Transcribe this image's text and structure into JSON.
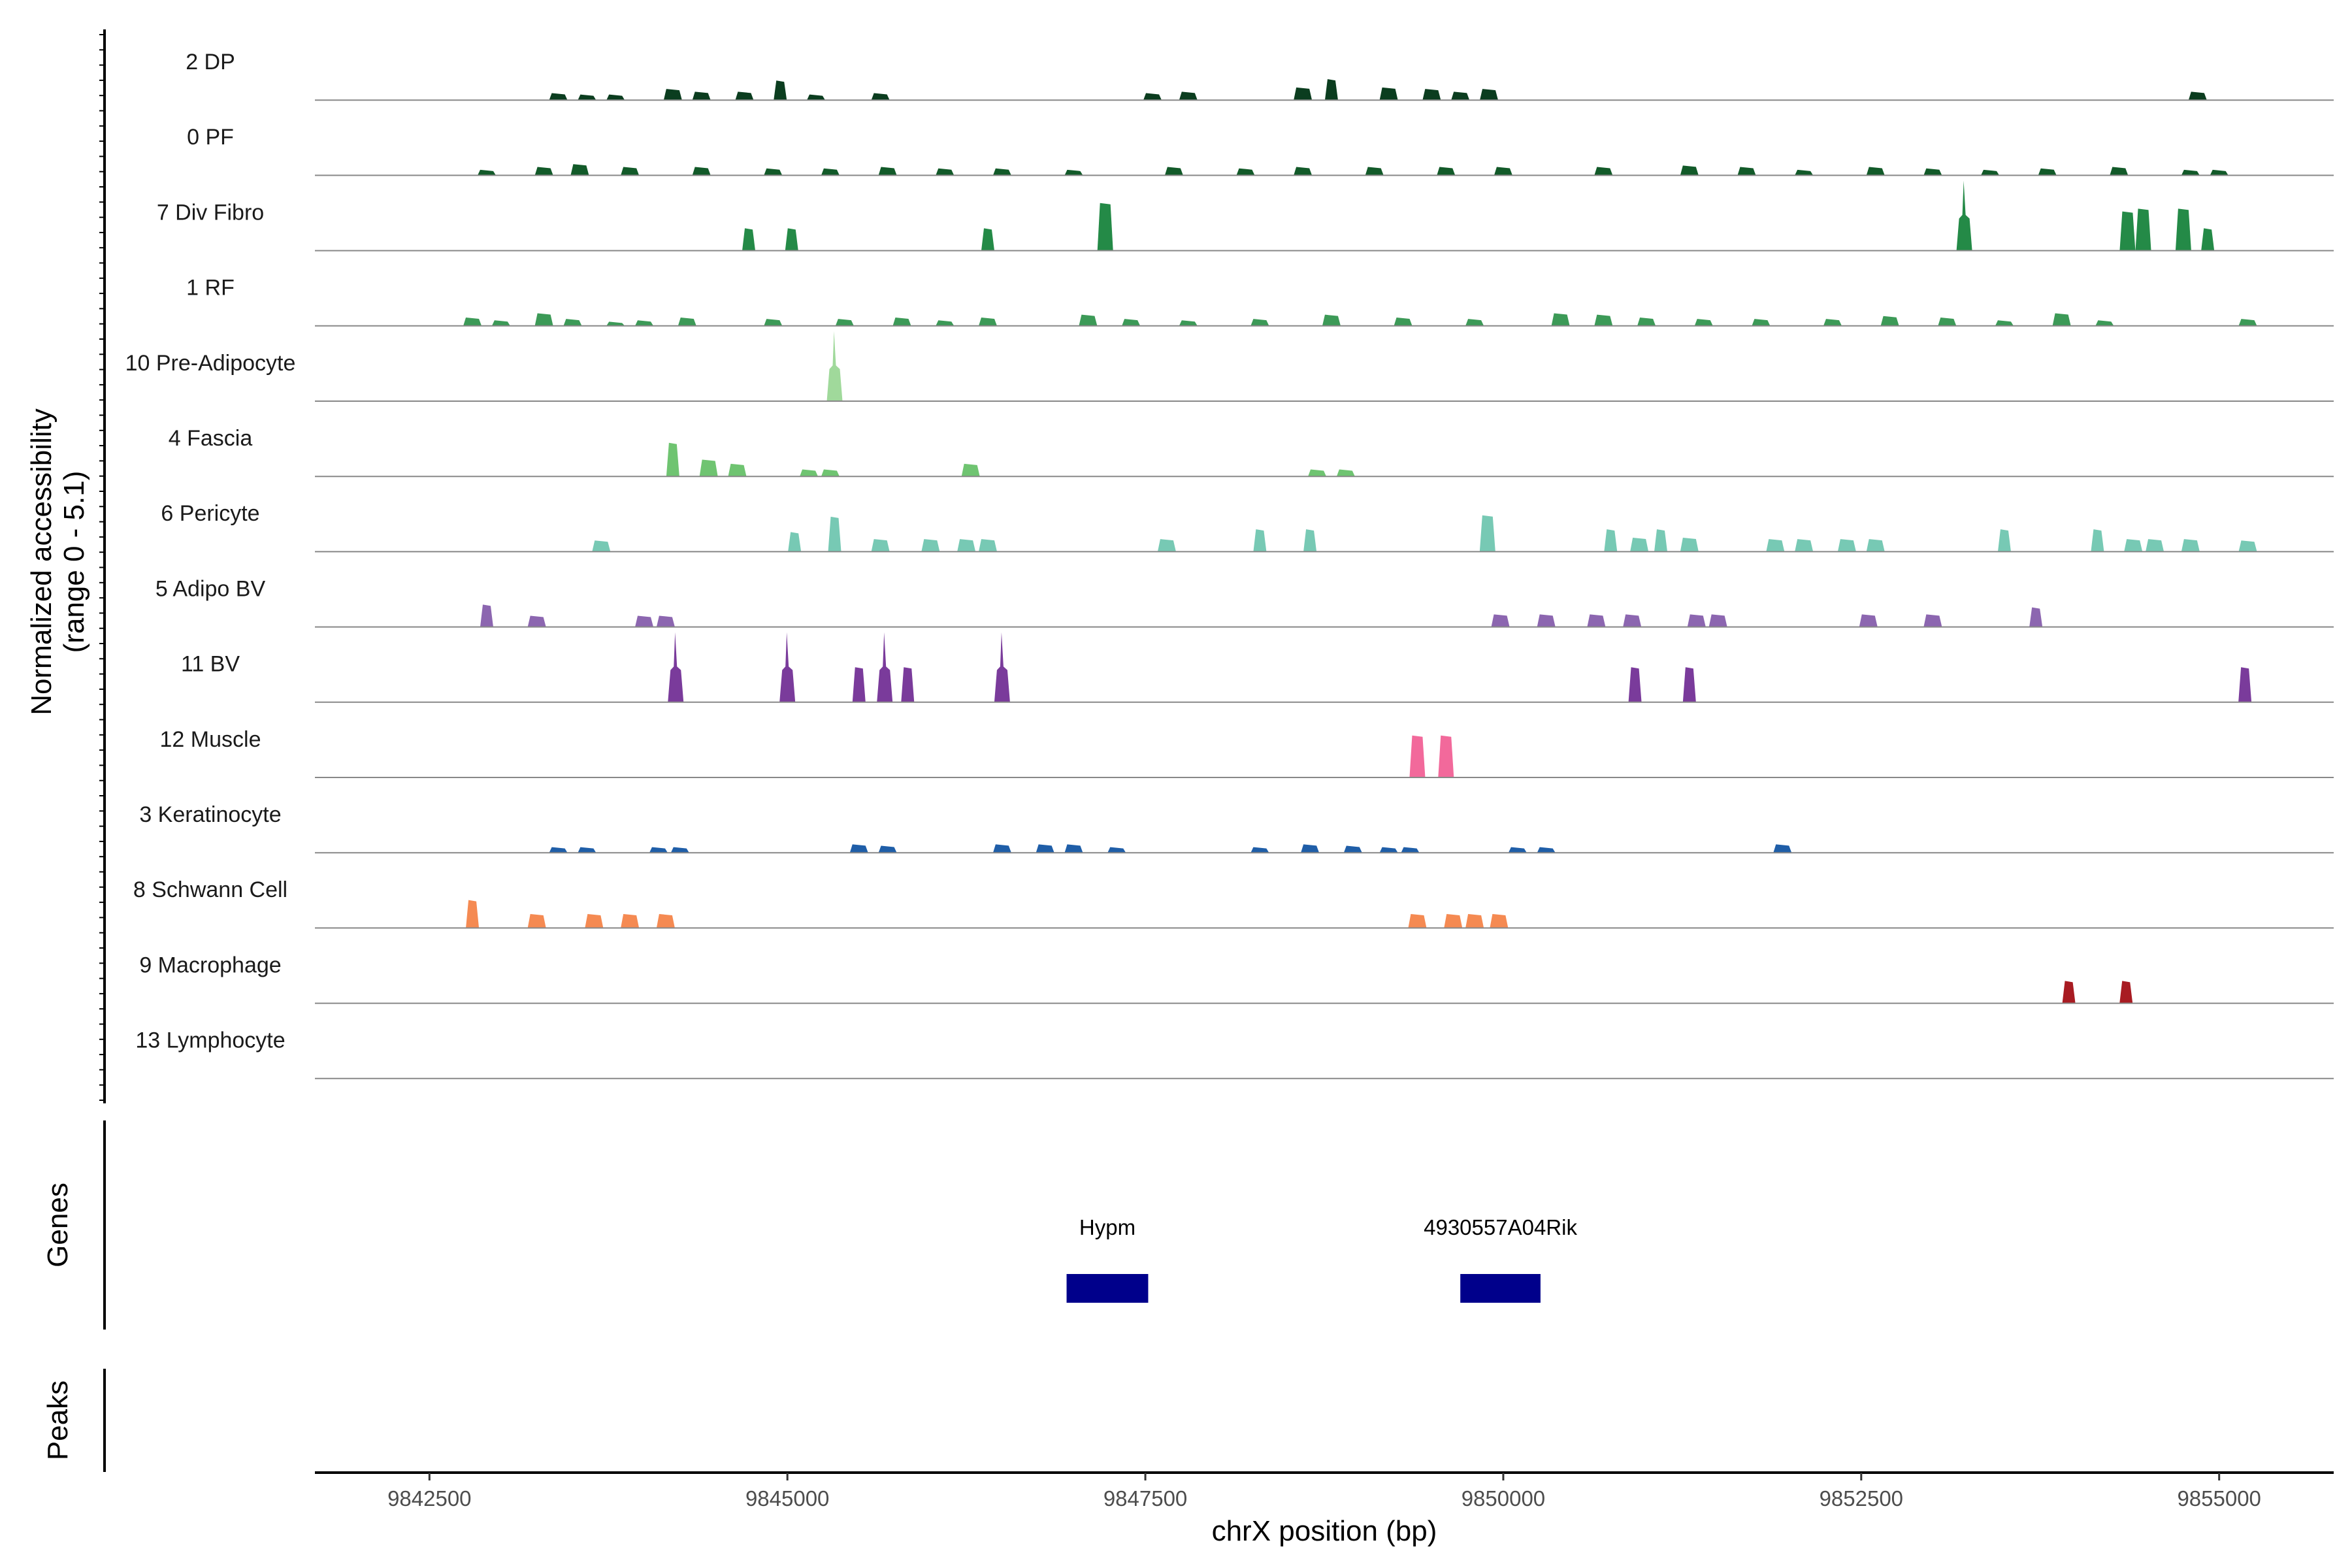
{
  "chart_data": {
    "type": "area",
    "title": "",
    "ylabel_line1": "Normalized accessibility",
    "ylabel_line2": "(range 0 - 5.1)",
    "xlabel": "chrX position (bp)",
    "xlim": [
      9841700,
      9855800
    ],
    "ylim": [
      0,
      5.1
    ],
    "x_ticks": [
      9842500,
      9845000,
      9847500,
      9850000,
      9852500,
      9855000
    ],
    "x_tick_labels": [
      "9842500",
      "9845000",
      "9847500",
      "9850000",
      "9852500",
      "9855000"
    ],
    "tracks_label": "Normalized accessibility",
    "series": [
      {
        "name": "2 DP",
        "color": "#0b3d1f",
        "peaks": [
          [
            9843400,
            0.5
          ],
          [
            9843600,
            0.4
          ],
          [
            9843800,
            0.4
          ],
          [
            9844200,
            0.8
          ],
          [
            9844400,
            0.6
          ],
          [
            9844700,
            0.6
          ],
          [
            9844950,
            1.4
          ],
          [
            9845200,
            0.4
          ],
          [
            9845650,
            0.5
          ],
          [
            9847550,
            0.5
          ],
          [
            9847800,
            0.6
          ],
          [
            9848600,
            0.9
          ],
          [
            9848800,
            1.5
          ],
          [
            9849200,
            0.9
          ],
          [
            9849500,
            0.8
          ],
          [
            9849700,
            0.6
          ],
          [
            9849900,
            0.8
          ],
          [
            9854850,
            0.6
          ]
        ]
      },
      {
        "name": "0 PF",
        "color": "#125a29",
        "peaks": [
          [
            9842900,
            0.4
          ],
          [
            9843300,
            0.6
          ],
          [
            9843550,
            0.8
          ],
          [
            9843900,
            0.6
          ],
          [
            9844400,
            0.6
          ],
          [
            9844900,
            0.5
          ],
          [
            9845300,
            0.5
          ],
          [
            9845700,
            0.6
          ],
          [
            9846100,
            0.5
          ],
          [
            9846500,
            0.5
          ],
          [
            9847000,
            0.4
          ],
          [
            9847700,
            0.6
          ],
          [
            9848200,
            0.5
          ],
          [
            9848600,
            0.6
          ],
          [
            9849100,
            0.6
          ],
          [
            9849600,
            0.6
          ],
          [
            9850000,
            0.6
          ],
          [
            9850700,
            0.6
          ],
          [
            9851300,
            0.7
          ],
          [
            9851700,
            0.6
          ],
          [
            9852100,
            0.4
          ],
          [
            9852600,
            0.6
          ],
          [
            9853000,
            0.5
          ],
          [
            9853400,
            0.4
          ],
          [
            9853800,
            0.5
          ],
          [
            9854300,
            0.6
          ],
          [
            9854800,
            0.4
          ],
          [
            9855000,
            0.4
          ]
        ]
      },
      {
        "name": "7 Div Fibro",
        "color": "#248a47",
        "peaks": [
          [
            9844730,
            1.6
          ],
          [
            9845030,
            1.6
          ],
          [
            9846400,
            1.6
          ],
          [
            9847220,
            3.4
          ],
          [
            9853220,
            5.0
          ],
          [
            9854360,
            2.8
          ],
          [
            9854470,
            3.0
          ],
          [
            9854750,
            3.0
          ],
          [
            9854920,
            1.6
          ]
        ]
      },
      {
        "name": "1 RF",
        "color": "#3c9a57",
        "peaks": [
          [
            9842800,
            0.6
          ],
          [
            9843000,
            0.4
          ],
          [
            9843300,
            0.9
          ],
          [
            9843500,
            0.5
          ],
          [
            9843800,
            0.3
          ],
          [
            9844000,
            0.4
          ],
          [
            9844300,
            0.6
          ],
          [
            9844900,
            0.5
          ],
          [
            9845400,
            0.5
          ],
          [
            9845800,
            0.6
          ],
          [
            9846100,
            0.4
          ],
          [
            9846400,
            0.6
          ],
          [
            9847100,
            0.8
          ],
          [
            9847400,
            0.5
          ],
          [
            9847800,
            0.4
          ],
          [
            9848300,
            0.5
          ],
          [
            9848800,
            0.8
          ],
          [
            9849300,
            0.6
          ],
          [
            9849800,
            0.5
          ],
          [
            9850400,
            0.9
          ],
          [
            9850700,
            0.8
          ],
          [
            9851000,
            0.6
          ],
          [
            9851400,
            0.5
          ],
          [
            9851800,
            0.5
          ],
          [
            9852300,
            0.5
          ],
          [
            9852700,
            0.7
          ],
          [
            9853100,
            0.6
          ],
          [
            9853500,
            0.4
          ],
          [
            9853900,
            0.9
          ],
          [
            9854200,
            0.4
          ],
          [
            9855200,
            0.5
          ]
        ]
      },
      {
        "name": "10 Pre-Adipocyte",
        "color": "#a0d99b",
        "peaks": [
          [
            9845330,
            5.0
          ]
        ]
      },
      {
        "name": "4 Fascia",
        "color": "#6fc471",
        "peaks": [
          [
            9844200,
            2.4
          ],
          [
            9844450,
            1.2
          ],
          [
            9844650,
            0.9
          ],
          [
            9845150,
            0.5
          ],
          [
            9845300,
            0.5
          ],
          [
            9846280,
            0.9
          ],
          [
            9848700,
            0.5
          ],
          [
            9848900,
            0.5
          ]
        ]
      },
      {
        "name": "6 Pericyte",
        "color": "#77c9b4",
        "peaks": [
          [
            9843700,
            0.8
          ],
          [
            9845050,
            1.4
          ],
          [
            9845330,
            2.5
          ],
          [
            9845650,
            0.9
          ],
          [
            9846000,
            0.9
          ],
          [
            9846250,
            0.9
          ],
          [
            9846400,
            0.9
          ],
          [
            9847650,
            0.9
          ],
          [
            9848300,
            1.6
          ],
          [
            9848650,
            1.6
          ],
          [
            9849890,
            2.6
          ],
          [
            9850750,
            1.6
          ],
          [
            9850950,
            1.0
          ],
          [
            9851100,
            1.6
          ],
          [
            9851300,
            1.0
          ],
          [
            9851900,
            0.9
          ],
          [
            9852100,
            0.9
          ],
          [
            9852400,
            0.9
          ],
          [
            9852600,
            0.9
          ],
          [
            9853500,
            1.6
          ],
          [
            9854150,
            1.6
          ],
          [
            9854400,
            0.9
          ],
          [
            9854550,
            0.9
          ],
          [
            9854800,
            0.9
          ],
          [
            9855200,
            0.8
          ]
        ]
      },
      {
        "name": "5 Adipo BV",
        "color": "#8c66b0",
        "peaks": [
          [
            9842900,
            1.6
          ],
          [
            9843250,
            0.8
          ],
          [
            9844000,
            0.8
          ],
          [
            9844150,
            0.8
          ],
          [
            9849980,
            0.9
          ],
          [
            9850300,
            0.9
          ],
          [
            9850650,
            0.9
          ],
          [
            9850900,
            0.9
          ],
          [
            9851350,
            0.9
          ],
          [
            9851500,
            0.9
          ],
          [
            9852550,
            0.9
          ],
          [
            9853000,
            0.9
          ],
          [
            9853720,
            1.4
          ]
        ]
      },
      {
        "name": "11 BV",
        "color": "#7a3b9b",
        "peaks": [
          [
            9844220,
            5.0
          ],
          [
            9845000,
            5.0
          ],
          [
            9845500,
            2.5
          ],
          [
            9845680,
            5.0
          ],
          [
            9845840,
            2.5
          ],
          [
            9846500,
            5.0
          ],
          [
            9850920,
            2.5
          ],
          [
            9851300,
            2.5
          ],
          [
            9855180,
            2.5
          ]
        ]
      },
      {
        "name": "12 Muscle",
        "color": "#f2699b",
        "peaks": [
          [
            9849400,
            3.0
          ],
          [
            9849600,
            3.0
          ]
        ]
      },
      {
        "name": "3 Keratinocyte",
        "color": "#1f5ea8",
        "peaks": [
          [
            9843400,
            0.4
          ],
          [
            9843600,
            0.4
          ],
          [
            9844100,
            0.4
          ],
          [
            9844250,
            0.4
          ],
          [
            9845500,
            0.6
          ],
          [
            9845700,
            0.5
          ],
          [
            9846500,
            0.6
          ],
          [
            9846800,
            0.6
          ],
          [
            9847000,
            0.6
          ],
          [
            9847300,
            0.4
          ],
          [
            9848300,
            0.4
          ],
          [
            9848650,
            0.6
          ],
          [
            9848950,
            0.5
          ],
          [
            9849200,
            0.4
          ],
          [
            9849350,
            0.4
          ],
          [
            9850100,
            0.4
          ],
          [
            9850300,
            0.4
          ],
          [
            9851950,
            0.6
          ]
        ]
      },
      {
        "name": "8 Schwann Cell",
        "color": "#f58a52",
        "peaks": [
          [
            9842800,
            2.0
          ],
          [
            9843250,
            1.0
          ],
          [
            9843650,
            1.0
          ],
          [
            9843900,
            1.0
          ],
          [
            9844150,
            1.0
          ],
          [
            9849400,
            1.0
          ],
          [
            9849650,
            1.0
          ],
          [
            9849800,
            1.0
          ],
          [
            9849970,
            1.0
          ]
        ]
      },
      {
        "name": "9 Macrophage",
        "color": "#a81b22",
        "peaks": [
          [
            9853950,
            1.6
          ],
          [
            9854350,
            1.6
          ]
        ]
      },
      {
        "name": "13 Lymphocyte",
        "color": "#555555",
        "peaks": []
      }
    ],
    "genes_label": "Genes",
    "peaks_label": "Peaks",
    "genes": [
      {
        "name": "Hypm",
        "start": 9846950,
        "end": 9847520,
        "color": "#00008b"
      },
      {
        "name": "4930557A04Rik",
        "start": 9849700,
        "end": 9850260,
        "color": "#00008b"
      }
    ]
  }
}
